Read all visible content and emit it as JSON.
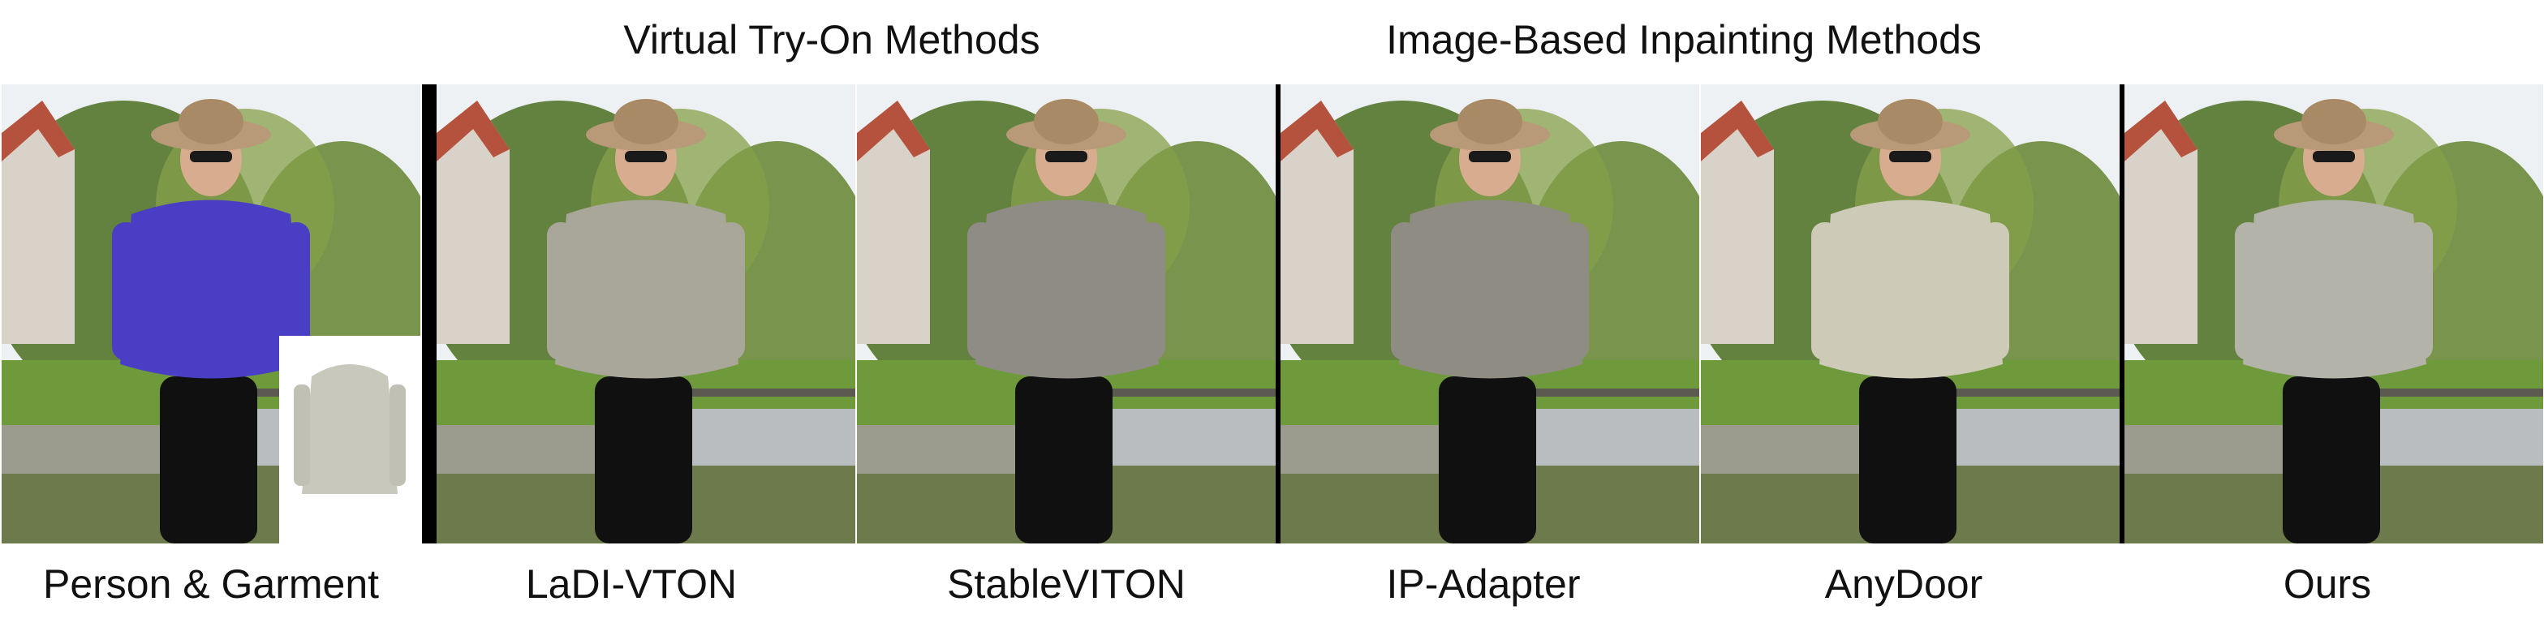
{
  "figure": {
    "group_titles": {
      "virtual_try_on": "Virtual Try-On Methods",
      "inpainting": "Image-Based Inpainting Methods"
    },
    "captions": [
      "Person & Garment",
      "LaDI-VTON",
      "StableVITON",
      "IP-Adapter",
      "AnyDoor",
      "Ours"
    ],
    "panels": [
      {
        "id": "input",
        "top_color": "#4a3fc4",
        "bottom_color": "#101010",
        "has_garment_inset": true
      },
      {
        "id": "ladi-vton",
        "top_color": "#a9a69a",
        "bottom_color": "#101010"
      },
      {
        "id": "stableviton",
        "top_color": "#8f8c86",
        "bottom_color": "#101010"
      },
      {
        "id": "ip-adapter",
        "top_color": "#8f8d83",
        "bottom_color": "#101010"
      },
      {
        "id": "anydoor",
        "top_color": "#cdcbb8",
        "bottom_color": "#101010"
      },
      {
        "id": "ours",
        "top_color": "#b4b3aa",
        "bottom_color": "#101010"
      }
    ],
    "colors": {
      "sky": "#eef1f3",
      "foliage": "#5b7a35",
      "grass": "#6f9a3c",
      "water": "#b9bdc0",
      "hat": "#b89a78",
      "skin": "#d8ad8f"
    }
  }
}
